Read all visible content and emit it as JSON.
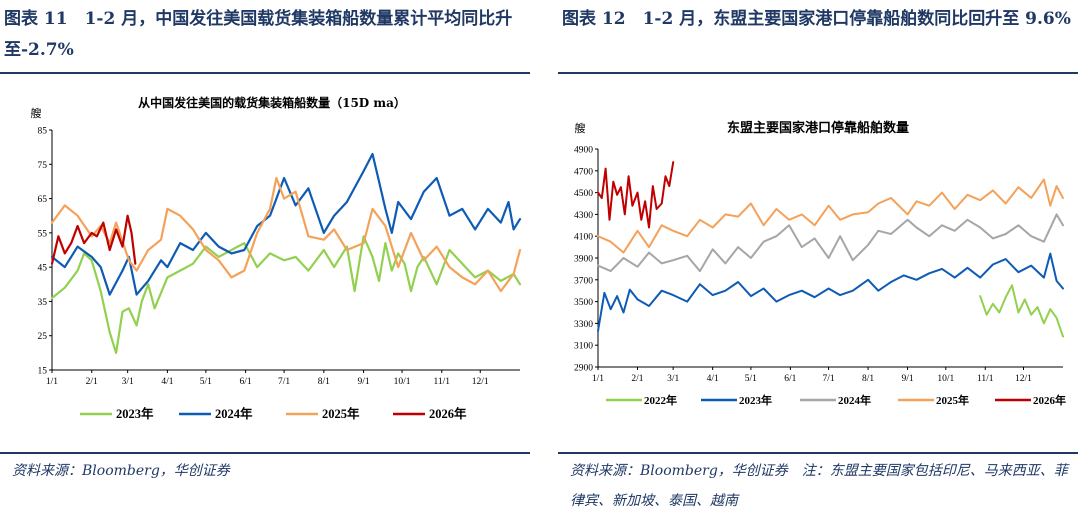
{
  "left": {
    "figure_title": "图表 11　1-2 月，中国发往美国载货集装箱船数量累计平均同比升至-2.7%",
    "source": "资料来源：Bloomberg，华创证券"
  },
  "right": {
    "figure_title": "图表 12　1-2 月，东盟主要国家港口停靠船舶数同比回升至 9.6%",
    "source": "资料来源：Bloomberg，华创证券　注：东盟主要国家包括印尼、马来西亚、菲律宾、新加坡、泰国、越南"
  },
  "colors": {
    "green": "#92d050",
    "blue": "#0e5bb5",
    "orange": "#f4a259",
    "red": "#c00000",
    "gray": "#a6a6a6",
    "navy": "#1f3864"
  },
  "chart_data": [
    {
      "type": "line",
      "title": "从中国发往美国的载货集装箱船数量（15D ma）",
      "ylabel": "艘",
      "ylim": [
        15,
        85
      ],
      "yticks": [
        15,
        25,
        35,
        45,
        55,
        65,
        75,
        85
      ],
      "x_ticks": [
        "1/1",
        "2/1",
        "3/1",
        "4/1",
        "5/1",
        "6/1",
        "7/1",
        "8/1",
        "9/1",
        "10/1",
        "11/1",
        "12/1"
      ],
      "x_tick_days": [
        0,
        31,
        59,
        90,
        120,
        151,
        181,
        212,
        243,
        273,
        304,
        334
      ],
      "x_range_days": [
        0,
        365
      ],
      "series": [
        {
          "name": "2023年",
          "color_key": "green",
          "x": [
            0,
            10,
            20,
            25,
            31,
            38,
            45,
            50,
            55,
            60,
            66,
            70,
            75,
            80,
            90,
            100,
            110,
            120,
            130,
            140,
            150,
            160,
            170,
            181,
            190,
            200,
            212,
            220,
            230,
            236,
            243,
            250,
            255,
            260,
            265,
            270,
            275,
            280,
            285,
            290,
            300,
            310,
            320,
            330,
            340,
            350,
            360,
            365
          ],
          "y": [
            36,
            39,
            44,
            49,
            47,
            38,
            26,
            20,
            32,
            33,
            28,
            35,
            40,
            33,
            42,
            44,
            46,
            51,
            48,
            50,
            52,
            45,
            49,
            47,
            48,
            44,
            50,
            45,
            51,
            38,
            54,
            48,
            41,
            52,
            44,
            49,
            46,
            38,
            45,
            48,
            40,
            50,
            46,
            42,
            44,
            41,
            43,
            40
          ]
        },
        {
          "name": "2024年",
          "color_key": "blue",
          "x": [
            0,
            10,
            20,
            31,
            38,
            45,
            55,
            60,
            66,
            75,
            85,
            90,
            100,
            110,
            120,
            130,
            140,
            150,
            160,
            170,
            181,
            190,
            200,
            212,
            220,
            230,
            243,
            250,
            255,
            260,
            265,
            270,
            280,
            290,
            300,
            310,
            320,
            330,
            340,
            350,
            356,
            360,
            365
          ],
          "y": [
            48,
            45,
            51,
            48,
            45,
            37,
            44,
            48,
            37,
            41,
            47,
            45,
            52,
            50,
            55,
            51,
            49,
            50,
            57,
            60,
            71,
            63,
            68,
            55,
            60,
            64,
            73,
            78,
            70,
            62,
            55,
            64,
            59,
            67,
            71,
            60,
            62,
            56,
            62,
            58,
            64,
            56,
            59
          ]
        },
        {
          "name": "2025年",
          "color_key": "orange",
          "x": [
            0,
            10,
            20,
            31,
            38,
            45,
            50,
            60,
            66,
            75,
            85,
            90,
            100,
            110,
            120,
            130,
            140,
            150,
            160,
            170,
            175,
            181,
            190,
            200,
            212,
            220,
            230,
            243,
            250,
            260,
            270,
            280,
            290,
            300,
            310,
            320,
            330,
            340,
            350,
            360,
            365
          ],
          "y": [
            58,
            63,
            60,
            54,
            57,
            52,
            58,
            47,
            44,
            50,
            53,
            62,
            60,
            56,
            50,
            47,
            42,
            44,
            55,
            62,
            71,
            65,
            67,
            54,
            53,
            56,
            50,
            52,
            62,
            57,
            45,
            55,
            47,
            51,
            45,
            42,
            40,
            44,
            38,
            43,
            50
          ]
        },
        {
          "name": "2026年",
          "color_key": "red",
          "x": [
            0,
            5,
            10,
            15,
            20,
            25,
            31,
            35,
            40,
            45,
            50,
            55,
            59,
            62,
            65
          ],
          "y": [
            46,
            54,
            49,
            52,
            57,
            52,
            55,
            54,
            58,
            50,
            56,
            51,
            60,
            55,
            46
          ]
        }
      ]
    },
    {
      "type": "line",
      "title": "东盟主要国家港口停靠船舶数量",
      "ylabel": "艘",
      "ylim": [
        2900,
        4900
      ],
      "yticks": [
        2900,
        3100,
        3300,
        3500,
        3700,
        3900,
        4100,
        4300,
        4500,
        4700,
        4900
      ],
      "x_ticks": [
        "1/1",
        "2/1",
        "3/1",
        "4/1",
        "5/1",
        "6/1",
        "7/1",
        "8/1",
        "9/1",
        "10/1",
        "11/1",
        "12/1"
      ],
      "x_tick_days": [
        0,
        31,
        59,
        90,
        120,
        151,
        181,
        212,
        243,
        273,
        304,
        334
      ],
      "x_range_days": [
        0,
        365
      ],
      "series": [
        {
          "name": "2022年",
          "color_key": "green",
          "x": [
            300,
            305,
            310,
            315,
            320,
            325,
            330,
            335,
            340,
            345,
            350,
            355,
            360,
            365
          ],
          "y": [
            3550,
            3380,
            3480,
            3400,
            3540,
            3650,
            3400,
            3520,
            3380,
            3450,
            3300,
            3430,
            3350,
            3180
          ]
        },
        {
          "name": "2023年",
          "color_key": "blue",
          "x": [
            0,
            5,
            10,
            15,
            20,
            25,
            31,
            40,
            50,
            59,
            70,
            80,
            90,
            100,
            110,
            120,
            130,
            140,
            150,
            160,
            170,
            181,
            190,
            200,
            212,
            220,
            230,
            240,
            250,
            260,
            270,
            280,
            290,
            300,
            310,
            320,
            330,
            340,
            350,
            355,
            360,
            365
          ],
          "y": [
            3230,
            3580,
            3430,
            3550,
            3400,
            3610,
            3520,
            3460,
            3600,
            3560,
            3500,
            3660,
            3560,
            3600,
            3680,
            3550,
            3620,
            3500,
            3560,
            3600,
            3540,
            3620,
            3560,
            3600,
            3700,
            3600,
            3680,
            3740,
            3700,
            3760,
            3800,
            3720,
            3810,
            3720,
            3840,
            3890,
            3770,
            3830,
            3720,
            3940,
            3690,
            3620
          ]
        },
        {
          "name": "2024年",
          "color_key": "gray",
          "x": [
            0,
            10,
            20,
            31,
            40,
            50,
            59,
            70,
            80,
            90,
            100,
            110,
            120,
            130,
            140,
            150,
            160,
            170,
            181,
            190,
            200,
            212,
            220,
            230,
            243,
            250,
            260,
            270,
            280,
            290,
            300,
            310,
            320,
            330,
            340,
            350,
            360,
            365
          ],
          "y": [
            3830,
            3780,
            3900,
            3820,
            3950,
            3850,
            3880,
            3920,
            3780,
            3980,
            3850,
            4000,
            3900,
            4050,
            4100,
            4200,
            4000,
            4080,
            3900,
            4100,
            3880,
            4020,
            4150,
            4120,
            4250,
            4180,
            4100,
            4200,
            4150,
            4250,
            4180,
            4080,
            4120,
            4200,
            4100,
            4050,
            4300,
            4200
          ]
        },
        {
          "name": "2025年",
          "color_key": "orange",
          "x": [
            0,
            10,
            20,
            31,
            40,
            50,
            59,
            70,
            80,
            90,
            100,
            110,
            120,
            130,
            140,
            150,
            160,
            170,
            181,
            190,
            200,
            212,
            220,
            230,
            243,
            250,
            260,
            270,
            280,
            290,
            300,
            310,
            320,
            330,
            340,
            350,
            355,
            360,
            365
          ],
          "y": [
            4100,
            4050,
            3950,
            4150,
            4000,
            4200,
            4150,
            4100,
            4250,
            4180,
            4300,
            4280,
            4400,
            4200,
            4350,
            4250,
            4300,
            4200,
            4380,
            4250,
            4300,
            4320,
            4400,
            4450,
            4300,
            4420,
            4380,
            4500,
            4350,
            4480,
            4430,
            4520,
            4400,
            4550,
            4450,
            4620,
            4380,
            4560,
            4450
          ]
        },
        {
          "name": "2026年",
          "color_key": "red",
          "x": [
            0,
            3,
            6,
            9,
            12,
            15,
            18,
            21,
            24,
            27,
            31,
            34,
            37,
            40,
            43,
            46,
            50,
            53,
            56,
            59
          ],
          "y": [
            4500,
            4450,
            4720,
            4250,
            4600,
            4480,
            4550,
            4300,
            4650,
            4380,
            4500,
            4250,
            4420,
            4180,
            4560,
            4350,
            4400,
            4650,
            4560,
            4780
          ]
        }
      ]
    }
  ]
}
